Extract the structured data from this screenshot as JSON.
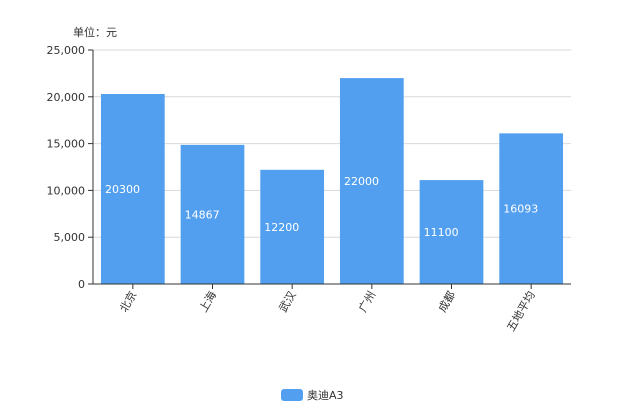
{
  "chart_data": {
    "type": "bar",
    "unit_label": "单位：元",
    "categories": [
      "北京",
      "上海",
      "武汉",
      "广州",
      "成都",
      "五地平均"
    ],
    "series": [
      {
        "name": "奥迪A3",
        "values": [
          20300,
          14867,
          12200,
          22000,
          11100,
          16093
        ],
        "color": "#529ff0"
      }
    ],
    "ylim": [
      0,
      25000
    ],
    "yticks": [
      "0",
      "5,000",
      "10,000",
      "15,000",
      "20,000",
      "25,000"
    ],
    "ytick_values": [
      0,
      5000,
      10000,
      15000,
      20000,
      25000
    ],
    "grid": true,
    "legend_position": "bottom-center",
    "data_labels": [
      "20300",
      "14867",
      "12200",
      "22000",
      "11100",
      "16093"
    ]
  }
}
